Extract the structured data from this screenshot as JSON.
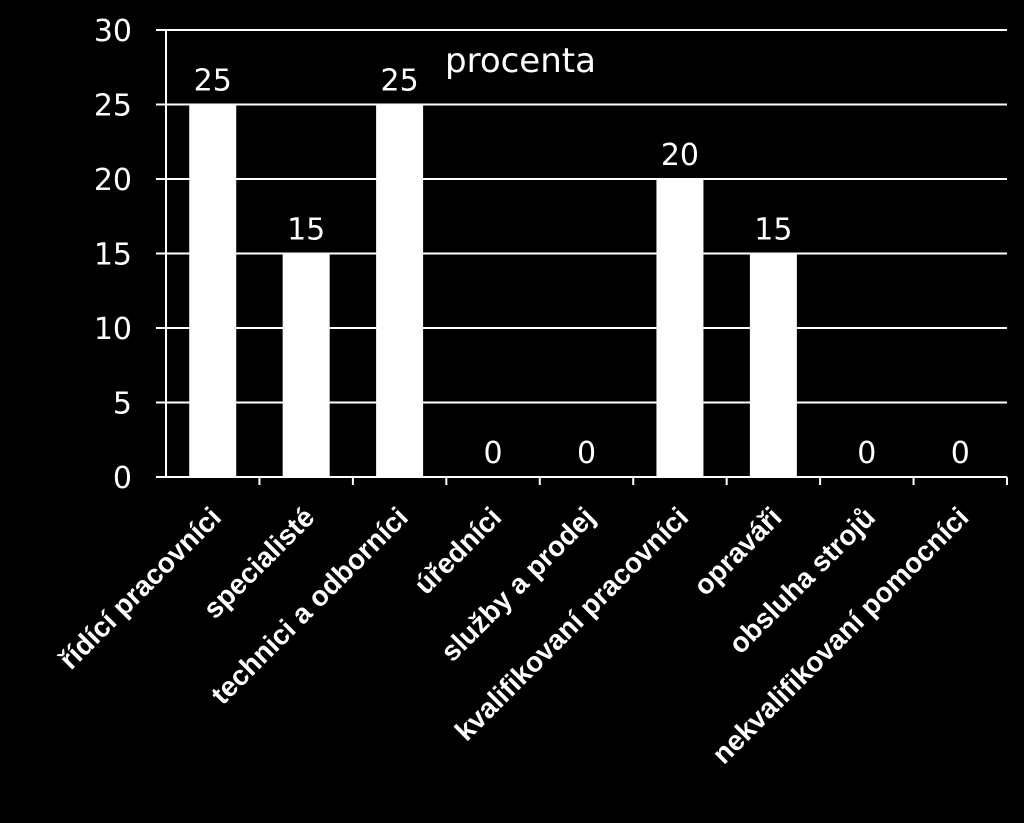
{
  "chart_data": {
    "type": "bar",
    "categories": [
      "řídící pracovníci",
      "specialisté",
      "technici a odborníci",
      "úředníci",
      "služby a prodej",
      "kvalifikovaní pracovníci",
      "opraváři",
      "obsluha strojů",
      "nekvalifikovaní pomocníci"
    ],
    "series": [
      {
        "name": "procenta",
        "values": [
          25,
          15,
          25,
          0,
          0,
          20,
          15,
          0,
          0
        ]
      }
    ],
    "data_labels": [
      "25",
      "15",
      "25",
      "0",
      "0",
      "20",
      "15",
      "0",
      "0"
    ],
    "y_ticks": [
      "0",
      "5",
      "10",
      "15",
      "20",
      "25",
      "30"
    ],
    "ylim": [
      0,
      30
    ],
    "grid": true,
    "legend_position": "top-center",
    "colors": {
      "background": "#000000",
      "bar": "#ffffff",
      "gridline": "#ffffff",
      "text": "#ffffff"
    }
  }
}
